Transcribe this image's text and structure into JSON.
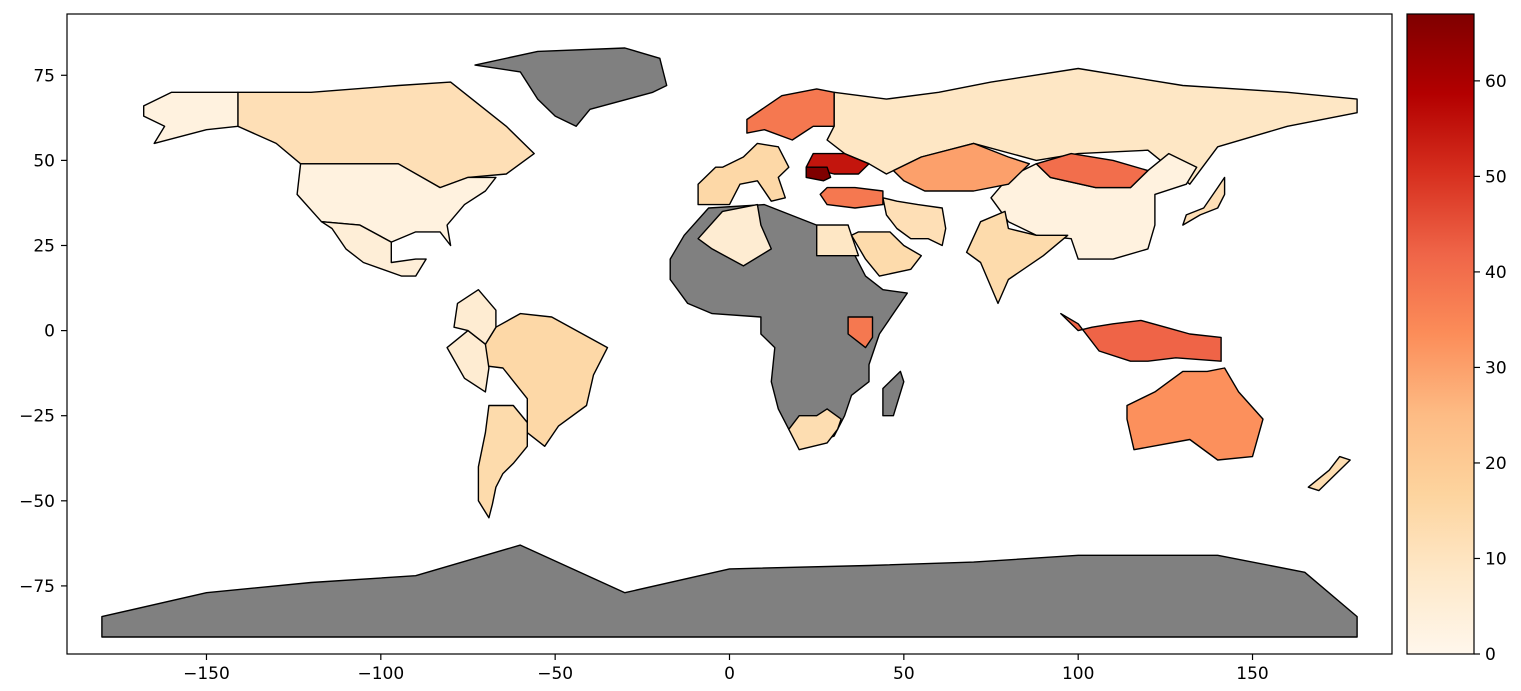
{
  "map": {
    "type": "choropleth",
    "projection": "plate-carree",
    "xlim": [
      -190,
      190
    ],
    "ylim": [
      -95,
      93
    ],
    "x_ticks": [
      -150,
      -100,
      -50,
      0,
      50,
      100,
      150
    ],
    "y_ticks": [
      75,
      50,
      25,
      0,
      -25,
      -50,
      -75
    ],
    "x_tick_labels": [
      "−150",
      "−100",
      "−50",
      "0",
      "50",
      "100",
      "150"
    ],
    "y_tick_labels": [
      "75",
      "50",
      "25",
      "0",
      "−25",
      "−50",
      "−75"
    ],
    "missing_color": "#808080",
    "colormap": "OrRd",
    "colorbar": {
      "vmin": 0,
      "vmax": 67,
      "ticks": [
        0,
        10,
        20,
        30,
        40,
        50,
        60
      ],
      "tick_labels": [
        "0",
        "10",
        "20",
        "30",
        "40",
        "50",
        "60"
      ],
      "stops": [
        "#fff7ec",
        "#fee8c8",
        "#fdd49e",
        "#fdbb84",
        "#fc8d59",
        "#ef6548",
        "#d7301f",
        "#b30000",
        "#7f0000"
      ]
    },
    "regions": [
      {
        "name": "Canada",
        "value": 12
      },
      {
        "name": "Alaska",
        "value": 3
      },
      {
        "name": "United States",
        "value": 3
      },
      {
        "name": "Mexico",
        "value": 5
      },
      {
        "name": "Greenland",
        "value": null
      },
      {
        "name": "Brazil",
        "value": 15
      },
      {
        "name": "Argentina",
        "value": 14
      },
      {
        "name": "Peru",
        "value": 6
      },
      {
        "name": "Colombia",
        "value": 6
      },
      {
        "name": "Antarctica",
        "value": null
      },
      {
        "name": "Russia",
        "value": 9
      },
      {
        "name": "China",
        "value": 3
      },
      {
        "name": "Kazakhstan",
        "value": 30
      },
      {
        "name": "Mongolia",
        "value": 40
      },
      {
        "name": "India",
        "value": 14
      },
      {
        "name": "Australia",
        "value": 33
      },
      {
        "name": "Indonesia",
        "value": 42
      },
      {
        "name": "Africa",
        "value": null
      },
      {
        "name": "South Africa",
        "value": 13
      },
      {
        "name": "Algeria",
        "value": 6
      },
      {
        "name": "Egypt",
        "value": 9
      },
      {
        "name": "Saudi Arabia",
        "value": 14
      },
      {
        "name": "Iran",
        "value": 12
      },
      {
        "name": "Turkey",
        "value": 38
      },
      {
        "name": "Scandinavia",
        "value": 38
      },
      {
        "name": "Western Europe",
        "value": 15
      },
      {
        "name": "Ukraine",
        "value": 55
      },
      {
        "name": "Romania",
        "value": 67
      },
      {
        "name": "Kenya",
        "value": 38
      },
      {
        "name": "Madagascar",
        "value": null
      },
      {
        "name": "Japan",
        "value": 12
      },
      {
        "name": "New Zealand",
        "value": 13
      }
    ]
  }
}
